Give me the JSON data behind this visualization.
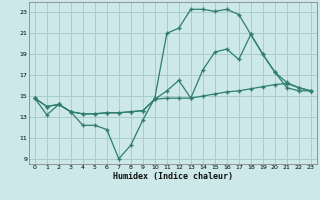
{
  "title": "",
  "xlabel": "Humidex (Indice chaleur)",
  "bg_color": "#cce8e8",
  "grid_color": "#aacccc",
  "line_color": "#2e7d72",
  "xlim": [
    -0.5,
    23.5
  ],
  "ylim": [
    8.5,
    24.0
  ],
  "xticks": [
    0,
    1,
    2,
    3,
    4,
    5,
    6,
    7,
    8,
    9,
    10,
    11,
    12,
    13,
    14,
    15,
    16,
    17,
    18,
    19,
    20,
    21,
    22,
    23
  ],
  "yticks": [
    9,
    11,
    13,
    15,
    17,
    19,
    21,
    23
  ],
  "line1_x": [
    0,
    1,
    2,
    3,
    4,
    5,
    6,
    7,
    8,
    9,
    10,
    11,
    12,
    13,
    14,
    15,
    16,
    17,
    18,
    19,
    20,
    21,
    22,
    23
  ],
  "line1_y": [
    14.8,
    13.2,
    14.2,
    13.5,
    12.2,
    12.2,
    11.8,
    9.0,
    10.3,
    12.7,
    14.8,
    21.0,
    21.5,
    23.3,
    23.3,
    23.1,
    23.3,
    22.8,
    20.9,
    19.0,
    17.3,
    16.3,
    15.8,
    15.5
  ],
  "line2_x": [
    0,
    1,
    2,
    3,
    4,
    5,
    6,
    7,
    8,
    9,
    10,
    11,
    12,
    13,
    14,
    15,
    16,
    17,
    18,
    19,
    20,
    21,
    22,
    23
  ],
  "line2_y": [
    14.8,
    14.0,
    14.2,
    13.5,
    13.3,
    13.3,
    13.4,
    13.4,
    13.5,
    13.6,
    14.7,
    14.8,
    14.8,
    14.8,
    15.0,
    15.2,
    15.4,
    15.5,
    15.7,
    15.9,
    16.1,
    16.2,
    15.8,
    15.5
  ],
  "line3_x": [
    0,
    1,
    2,
    3,
    4,
    5,
    6,
    7,
    8,
    9,
    10,
    11,
    12,
    13,
    14,
    15,
    16,
    17,
    18,
    19,
    20,
    21,
    22,
    23
  ],
  "line3_y": [
    14.8,
    14.0,
    14.2,
    13.5,
    13.3,
    13.3,
    13.4,
    13.4,
    13.5,
    13.6,
    14.7,
    15.5,
    16.5,
    14.8,
    17.5,
    19.2,
    19.5,
    18.5,
    20.9,
    19.0,
    17.3,
    15.8,
    15.5,
    15.5
  ]
}
